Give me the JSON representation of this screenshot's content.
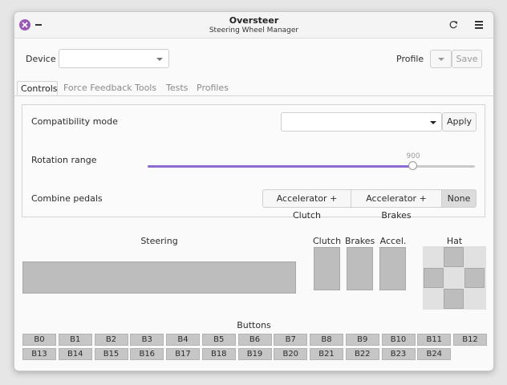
{
  "app": {
    "title": "Oversteer",
    "subtitle": "Steering Wheel Manager"
  },
  "header": {
    "device_label": "Device",
    "device_value": "",
    "profile_label": "Profile",
    "profile_value": "",
    "save_label": "Save"
  },
  "tabs": [
    {
      "label": "Controls",
      "active": true
    },
    {
      "label": "Force Feedback",
      "active": false
    },
    {
      "label": "Tools",
      "active": false
    },
    {
      "label": "Tests",
      "active": false
    },
    {
      "label": "Profiles",
      "active": false
    }
  ],
  "controls": {
    "compat_label": "Compatibility mode",
    "compat_value": "",
    "apply_label": "Apply",
    "rotation_label": "Rotation range",
    "rotation_value": "900",
    "rotation_fraction": 0.81,
    "combine_label": "Combine pedals",
    "combine_options": [
      "Accelerator + Clutch",
      "Accelerator + Brakes",
      "None"
    ],
    "combine_selected": "None"
  },
  "inputs": {
    "steering_label": "Steering",
    "clutch_label": "Clutch",
    "brakes_label": "Brakes",
    "accel_label": "Accel.",
    "hat_label": "Hat",
    "buttons_label": "Buttons"
  },
  "buttons_row1": [
    "B0",
    "B1",
    "B2",
    "B3",
    "B4",
    "B5",
    "B6",
    "B7",
    "B8",
    "B9",
    "B10",
    "B11",
    "B12"
  ],
  "buttons_row2": [
    "B13",
    "B14",
    "B15",
    "B16",
    "B17",
    "B18",
    "B19",
    "B20",
    "B21",
    "B22",
    "B23",
    "B24"
  ],
  "colors": {
    "accent": "#8e6bd3",
    "close": "#9b59b6"
  }
}
